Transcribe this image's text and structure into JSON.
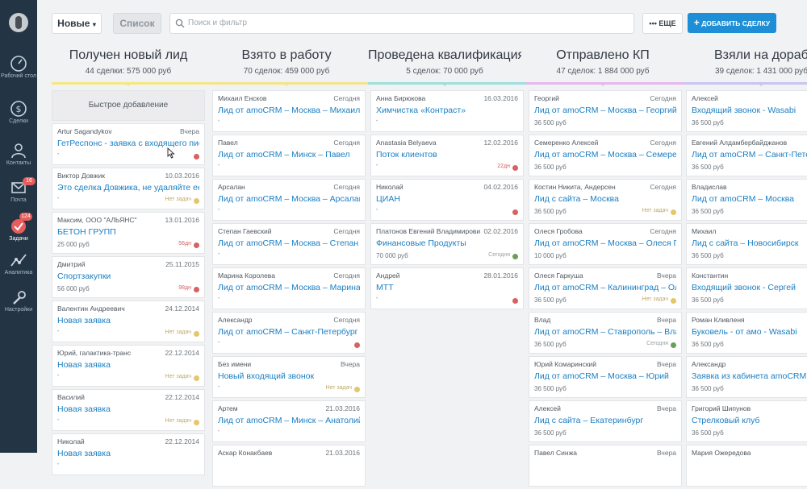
{
  "nav": {
    "items": [
      {
        "label": "Рабочий стол",
        "icon": "dashboard-icon"
      },
      {
        "label": "Сделки",
        "icon": "dollar-icon"
      },
      {
        "label": "Контакты",
        "icon": "contacts-icon"
      },
      {
        "label": "Почта",
        "icon": "mail-icon",
        "badge": "16"
      },
      {
        "label": "Задачи",
        "icon": "tasks-icon",
        "badge": "124"
      },
      {
        "label": "Аналитика",
        "icon": "analytics-icon"
      },
      {
        "label": "Настройки",
        "icon": "settings-icon"
      }
    ]
  },
  "toolbar": {
    "view_label": "Новые",
    "list_label": "Список",
    "search_placeholder": "Поиск и фильтр",
    "more_label": "ЕЩЕ",
    "add_deal_label": "ДОБАВИТЬ СДЕЛКУ"
  },
  "colors": {
    "accent": "#1e8fd6",
    "sidebar": "#233545",
    "link": "#1b7fc3",
    "dot_red": "#d86262",
    "dot_yellow": "#e3c76b",
    "dot_green": "#6b9e5a"
  },
  "stages": [
    {
      "title": "Получен новый лид",
      "meta": "44 сделки: 575 000 руб",
      "color": "#f4e87f"
    },
    {
      "title": "Взято в работу",
      "meta": "70 сделок: 459 000 руб",
      "color": "#f2e48a"
    },
    {
      "title": "Проведена квалификация",
      "meta": "5 сделок: 70 000 руб",
      "color": "#9de0dd"
    },
    {
      "title": "Отправлено КП",
      "meta": "47 сделок: 1 884 000 руб",
      "color": "#e6b9ec"
    },
    {
      "title": "Взяли на доработку",
      "meta": "39 сделок: 1 431 000 руб",
      "color": "#c9c4f2"
    }
  ],
  "quick_add": "Быстрое добавление",
  "columns": [
    [
      {
        "contact": "Artur Sagandykov",
        "date": "Вчера",
        "title": "ГетРеспонс - заявка с входящего письма",
        "sum": "",
        "status": "",
        "dot": "red"
      },
      {
        "contact": "Виктор Довжик",
        "date": "10.03.2016",
        "title": "Это сделка Довжика, не удаляйте ее",
        "sum": "",
        "status": "Нет задач",
        "dot": "yellow"
      },
      {
        "contact": "Максим, ООО \"АЛЬЯНС\"",
        "date": "13.01.2016",
        "title": "БЕТОН ГРУПП",
        "sum": "25 000 руб",
        "status": "56дн",
        "dot": "red"
      },
      {
        "contact": "Дмитрий",
        "date": "25.11.2015",
        "title": "Спортзакупки",
        "sum": "56 000 руб",
        "status": "98дн",
        "dot": "red"
      },
      {
        "contact": "Валентин Андреевич",
        "date": "24.12.2014",
        "title": "Новая заявка",
        "sum": "",
        "status": "Нет задач",
        "dot": "yellow"
      },
      {
        "contact": "Юрий, галактика-транс",
        "date": "22.12.2014",
        "title": "Новая заявка",
        "sum": "",
        "status": "Нет задач",
        "dot": "yellow"
      },
      {
        "contact": "Василий",
        "date": "22.12.2014",
        "title": "Новая заявка",
        "sum": "",
        "status": "Нет задач",
        "dot": "yellow"
      },
      {
        "contact": "Николай",
        "date": "22.12.2014",
        "title": "Новая заявка",
        "sum": "",
        "status": "",
        "dot": ""
      }
    ],
    [
      {
        "contact": "Михаил Енсков",
        "date": "Сегодня",
        "title": "Лид от amoCRM – Москва – Михаил",
        "sum": "",
        "status": "",
        "dot": ""
      },
      {
        "contact": "Павел",
        "date": "Сегодня",
        "title": "Лид от amoCRM – Минск – Павел",
        "sum": "",
        "status": "",
        "dot": ""
      },
      {
        "contact": "Арсалан",
        "date": "Сегодня",
        "title": "Лид от amoCRM – Москва – Арсалан",
        "sum": "",
        "status": "",
        "dot": ""
      },
      {
        "contact": "Степан Гаевский",
        "date": "Сегодня",
        "title": "Лид от amoCRM – Москва – Степан",
        "sum": "",
        "status": "",
        "dot": ""
      },
      {
        "contact": "Марина Королева",
        "date": "Сегодня",
        "title": "Лид от amoCRM – Москва – Марина",
        "sum": "",
        "status": "",
        "dot": ""
      },
      {
        "contact": "Александр",
        "date": "Сегодня",
        "title": "Лид от amoCRM – Санкт-Петербург – Александр",
        "sum": "",
        "status": "",
        "dot": "red"
      },
      {
        "contact": "Без имени",
        "date": "Вчера",
        "title": "Новый входящий звонок",
        "sum": "",
        "status": "Нет задач",
        "dot": "yellow"
      },
      {
        "contact": "Артем",
        "date": "21.03.2016",
        "title": "Лид от amoCRM – Минск – Анатолий",
        "sum": "",
        "status": "",
        "dot": ""
      },
      {
        "contact": "Аскар Конакбаев",
        "date": "21.03.2016",
        "title": "",
        "sum": "",
        "status": "",
        "dot": ""
      }
    ],
    [
      {
        "contact": "Анна Бирюкова",
        "date": "16.03.2016",
        "title": "Химчистка «Контраст»",
        "sum": "",
        "status": "",
        "dot": ""
      },
      {
        "contact": "Anastasia Belyaeva",
        "date": "12.02.2016",
        "title": "Поток клиентов",
        "sum": "",
        "status": "22дн",
        "dot": "red"
      },
      {
        "contact": "Николай",
        "date": "04.02.2016",
        "title": "ЦИАН",
        "sum": "",
        "status": "",
        "dot": "red"
      },
      {
        "contact": "Платонов Евгений Владимирович",
        "date": "02.02.2016",
        "title": "Финансовые Продукты",
        "sum": "70 000 руб",
        "status": "Сегодня",
        "dot": "green"
      },
      {
        "contact": "Андрей",
        "date": "28.01.2016",
        "title": "МТТ",
        "sum": "",
        "status": "",
        "dot": "red"
      }
    ],
    [
      {
        "contact": "Георгий",
        "date": "Сегодня",
        "title": "Лид от amoCRM – Москва – Георгий",
        "sum": "36 500 руб",
        "status": "",
        "dot": ""
      },
      {
        "contact": "Семеренко Алексей",
        "date": "Сегодня",
        "title": "Лид от amoCRM – Москва – Семеренко Алексей",
        "sum": "36 500 руб",
        "status": "",
        "dot": ""
      },
      {
        "contact": "Костин Никита, Андерсен",
        "date": "Сегодня",
        "title": "Лид с сайта – Москва",
        "sum": "36 500 руб",
        "status": "Нет задач",
        "dot": "yellow"
      },
      {
        "contact": "Олеся Гробова",
        "date": "Сегодня",
        "title": "Лид от amoCRM – Москва – Олеся Гробова",
        "sum": "10 000 руб",
        "status": "",
        "dot": ""
      },
      {
        "contact": "Олеся Гаркуша",
        "date": "Вчера",
        "title": "Лид от amoCRM – Калининград – Олеся",
        "sum": "36 500 руб",
        "status": "Нет задач",
        "dot": "yellow"
      },
      {
        "contact": "Влад",
        "date": "Вчера",
        "title": "Лид от amoCRM – Ставрополь – Влад",
        "sum": "36 500 руб",
        "status": "Сегодня",
        "dot": "green"
      },
      {
        "contact": "Юрий Комаринский",
        "date": "Вчера",
        "title": "Лид от amoCRM – Москва – Юрий",
        "sum": "36 500 руб",
        "status": "",
        "dot": ""
      },
      {
        "contact": "Алексей",
        "date": "Вчера",
        "title": "Лид с сайта – Екатеринбург",
        "sum": "36 500 руб",
        "status": "",
        "dot": ""
      },
      {
        "contact": "Павел Синжа",
        "date": "Вчера",
        "title": "",
        "sum": "",
        "status": "",
        "dot": ""
      }
    ],
    [
      {
        "contact": "Алексей",
        "date": "",
        "title": "Входящий звонок - Wasabi",
        "sum": "36 500 руб",
        "status": "",
        "dot": ""
      },
      {
        "contact": "Евгений Алдамбербайджанов",
        "date": "",
        "title": "Лид от amoCRM – Санкт-Петербург",
        "sum": "36 500 руб",
        "status": "",
        "dot": ""
      },
      {
        "contact": "Владислав",
        "date": "",
        "title": "Лид от amoCRM – Москва",
        "sum": "36 500 руб",
        "status": "",
        "dot": ""
      },
      {
        "contact": "Михаил",
        "date": "",
        "title": "Лид с сайта – Новосибирск",
        "sum": "36 500 руб",
        "status": "",
        "dot": ""
      },
      {
        "contact": "Константин",
        "date": "",
        "title": "Входящий звонок - Сергей",
        "sum": "36 500 руб",
        "status": "",
        "dot": ""
      },
      {
        "contact": "Роман Кливленя",
        "date": "",
        "title": "Буковель - от амо - Wasabi",
        "sum": "36 500 руб",
        "status": "",
        "dot": ""
      },
      {
        "contact": "Александр",
        "date": "",
        "title": "Заявка из кабинета amoCRM",
        "sum": "36 500 руб",
        "status": "",
        "dot": ""
      },
      {
        "contact": "Григорий Шипунов",
        "date": "",
        "title": "Стрелковый клуб",
        "sum": "36 500 руб",
        "status": "",
        "dot": ""
      },
      {
        "contact": "Мария Ожередова",
        "date": "",
        "title": "",
        "sum": "",
        "status": "",
        "dot": ""
      }
    ]
  ]
}
